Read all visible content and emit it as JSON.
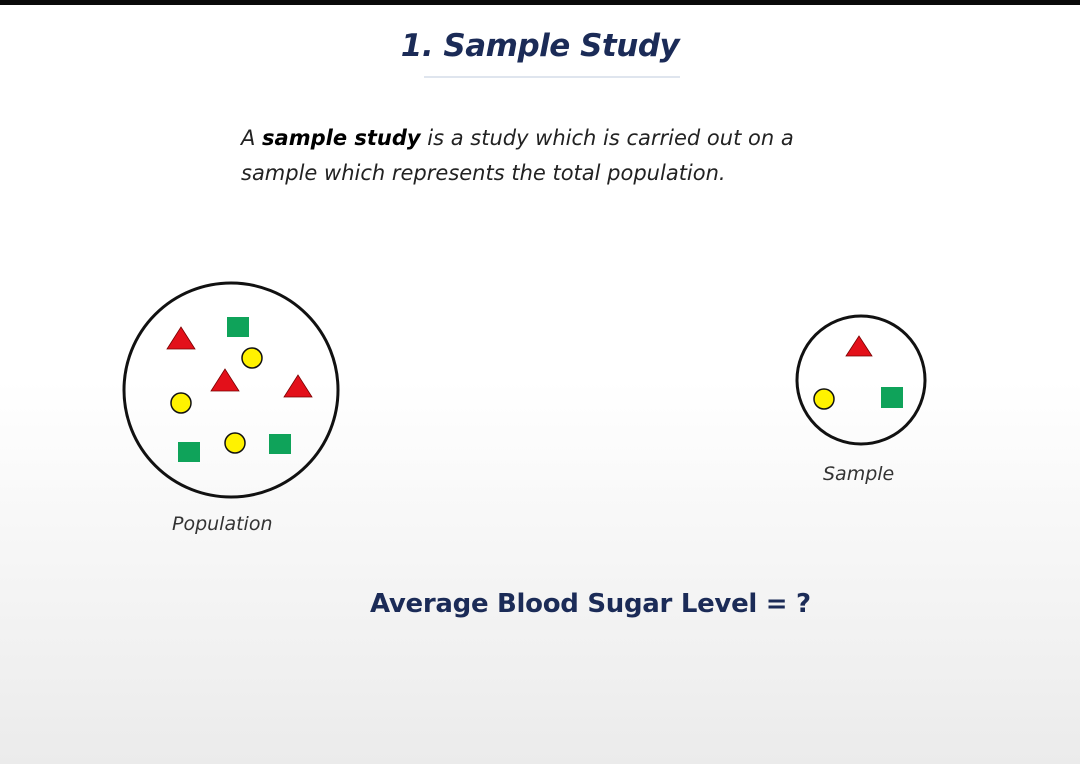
{
  "slide": {
    "title": "1. Sample Study",
    "definition": {
      "prefix": "A ",
      "term": "sample study",
      "line1_rest": " is a study which is carried out on a",
      "line2": "sample which represents the total population."
    },
    "population_label": "Population",
    "sample_label": "Sample",
    "question": "Average Blood Sugar Level = ?"
  },
  "colors": {
    "title": "#1b2b57",
    "triangle": "#e3101a",
    "square": "#0fa35a",
    "circle": "#fff200",
    "outline": "#111111"
  },
  "shapes": {
    "population": [
      {
        "kind": "triangle",
        "name": "population-triangle-1"
      },
      {
        "kind": "square",
        "name": "population-square-1"
      },
      {
        "kind": "circle",
        "name": "population-circle-1"
      },
      {
        "kind": "triangle",
        "name": "population-triangle-2"
      },
      {
        "kind": "triangle",
        "name": "population-triangle-3"
      },
      {
        "kind": "circle",
        "name": "population-circle-2"
      },
      {
        "kind": "square",
        "name": "population-square-2"
      },
      {
        "kind": "circle",
        "name": "population-circle-3"
      },
      {
        "kind": "square",
        "name": "population-square-3"
      }
    ],
    "sample": [
      {
        "kind": "triangle",
        "name": "sample-triangle"
      },
      {
        "kind": "circle",
        "name": "sample-circle"
      },
      {
        "kind": "square",
        "name": "sample-square"
      }
    ]
  }
}
